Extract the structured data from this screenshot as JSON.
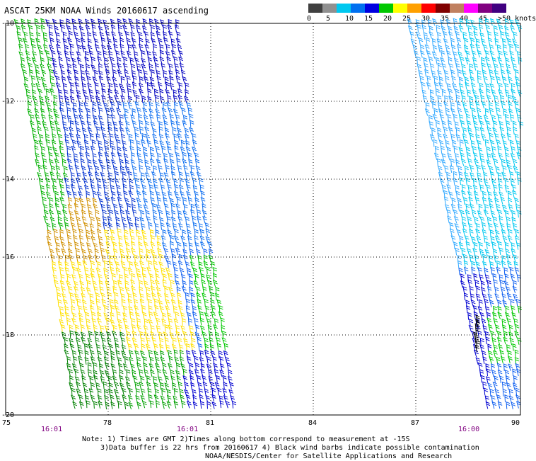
{
  "title": "ASCAT 25KM NOAA Winds 20160617 ascending",
  "scale": {
    "labels": [
      "0",
      "5",
      "10",
      "15",
      "20",
      "25",
      "30",
      "35",
      "40",
      "45",
      ">50 knots"
    ],
    "colors": [
      "#404040",
      "#909090",
      "#00c8f0",
      "#0070f0",
      "#0000e0",
      "#00c800",
      "#ffff00",
      "#ffa000",
      "#ff0000",
      "#800000",
      "#c08060",
      "#ff00ff",
      "#800080",
      "#400080"
    ]
  },
  "map": {
    "lon_labels": [
      "75",
      "78",
      "81",
      "84",
      "87",
      "90"
    ],
    "lat_labels": [
      "-10",
      "-12",
      "-14",
      "-16",
      "-18",
      "-20"
    ],
    "time_labels": [
      "16:01",
      "16:01",
      "16:00"
    ]
  },
  "notes": [
    "Note: 1) Times are GMT 2)Times along bottom correspond to measurement at -15S",
    "3)Data buffer is 22 hrs from 20160617 4) Black wind barbs indicate possible contamination",
    "NOAA/NESDIS/Center for Satellite Applications and Research"
  ]
}
